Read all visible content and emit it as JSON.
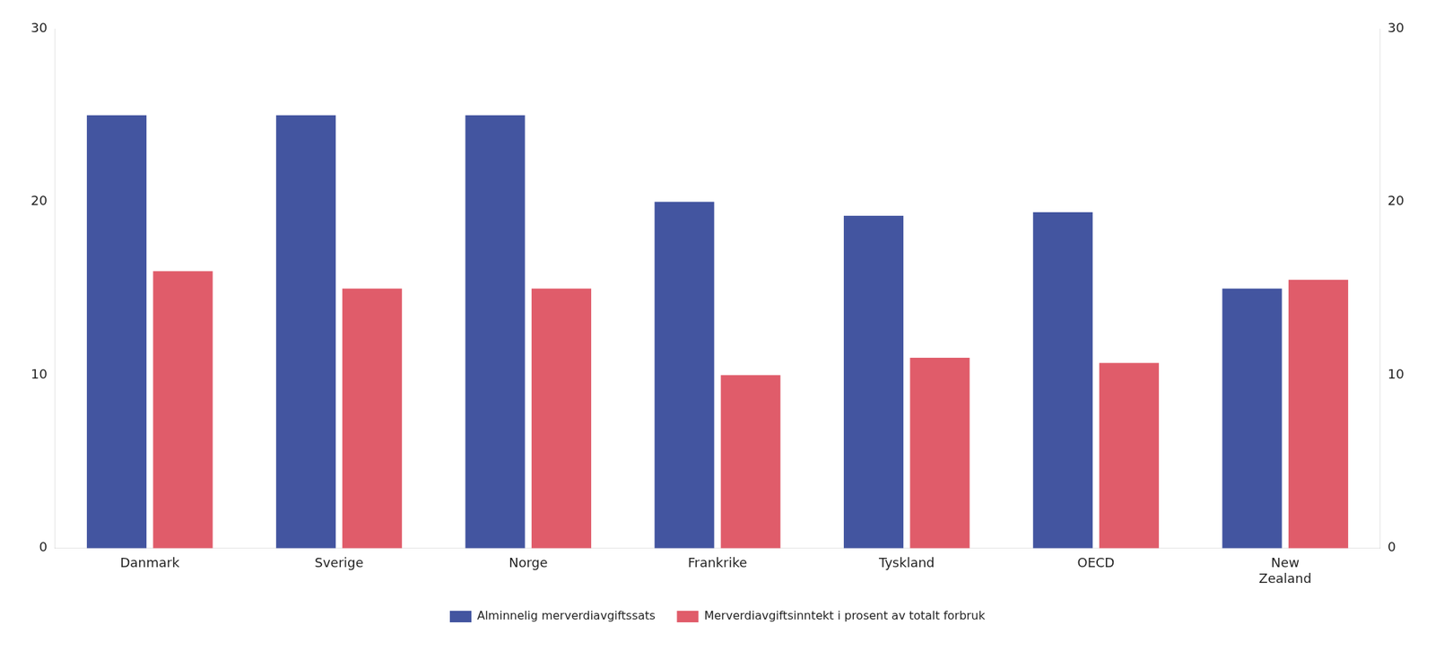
{
  "chart_data": {
    "type": "bar",
    "categories": [
      "Danmark",
      "Sverige",
      "Norge",
      "Frankrike",
      "Tyskland",
      "OECD",
      "New\nZealand"
    ],
    "series": [
      {
        "name": "Alminnelig merverdiavgiftssats",
        "color": "#4355a0",
        "values": [
          25,
          25,
          25,
          20,
          19.2,
          19.4,
          15
        ]
      },
      {
        "name": "Merverdiavgiftsinntekt i prosent av totalt forbruk",
        "color": "#e05c6a",
        "values": [
          16.0,
          15.0,
          15.0,
          10.0,
          11.0,
          10.7,
          15.5
        ]
      }
    ],
    "ylim": [
      0,
      30
    ],
    "yticks": [
      0,
      10,
      20,
      30
    ],
    "y2lim": [
      0,
      30
    ],
    "y2ticks": [
      0,
      10,
      20,
      30
    ],
    "grid": false,
    "legend": "bottom"
  }
}
